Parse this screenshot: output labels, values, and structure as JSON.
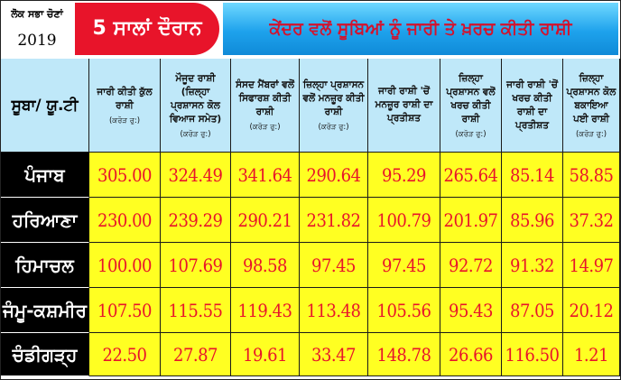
{
  "header": {
    "edition_line1": "ਲੋਕ ਸਭਾ ਚੋਣਾਂ",
    "edition_line2": "2019",
    "badge": "5 ਸਾਲਾਂ ਦੌਰਾਨ",
    "headline": "ਕੇਂਦਰ ਵਲੋਂ ਸੂਬਿਆਂ ਨੂੰ ਜਾਰੀ ਤੇ ਖ਼ਰਚ ਕੀਤੀ ਰਾਸ਼ੀ",
    "badge_color": "#e8142a",
    "headline_bg": "#1ea2ec",
    "headline_text_color": "#d4122c"
  },
  "table": {
    "corner": "ਸੂਬਾ/ ਯੂ.ਟੀ",
    "columns": [
      {
        "title": "ਜਾਰੀ ਕੀਤੀ ਕੁੱਲ ਰਾਸ਼ੀ",
        "unit": "(ਕਰੋੜ ਰੁ:)"
      },
      {
        "title": "ਮੌਜੂਦ ਰਾਸ਼ੀ (ਜ਼ਿਲ੍ਹਾ ਪ੍ਰਸ਼ਾਸਨ ਕੋਲ ਵਿਆਜ ਸਮੇਤ)",
        "unit": "(ਕਰੋੜ ਰੁ:)"
      },
      {
        "title": "ਸੰਸਦ ਮੈਂਬਰਾਂ ਵਲੋਂ ਸਿਫਾਰਸ਼ ਕੀਤੀ ਰਾਸ਼ੀ",
        "unit": "(ਕਰੋੜ ਰੁ:)"
      },
      {
        "title": "ਜ਼ਿਲ੍ਹਾ ਪ੍ਰਸ਼ਾਸਨ ਵਲੋਂ ਮਨਜ਼ੂਰ ਕੀਤੀ ਰਾਸ਼ੀ",
        "unit": "(ਕਰੋੜ ਰੁ:)"
      },
      {
        "title": "ਜਾਰੀ ਰਾਸ਼ੀ 'ਚੋਂ ਮਨਜ਼ੂਰ ਰਾਸ਼ੀ ਦਾ ਪ੍ਰਤੀਸ਼ਤ",
        "unit": ""
      },
      {
        "title": "ਜ਼ਿਲ੍ਹਾ ਪ੍ਰਸ਼ਾਸਨ ਵਲੋਂ ਖਰਚ ਕੀਤੀ ਰਾਸ਼ੀ",
        "unit": "(ਕਰੋੜ ਰੁ:)"
      },
      {
        "title": "ਜਾਰੀ ਰਾਸ਼ੀ 'ਚੋਂ ਖਰਚ ਕੀਤੀ ਰਾਸ਼ੀ ਦਾ ਪ੍ਰਤੀਸ਼ਤ",
        "unit": ""
      },
      {
        "title": "ਜ਼ਿਲ੍ਹਾ ਪ੍ਰਸ਼ਾਸਨ ਕੋਲ ਬਕਾਇਆ ਪਈ ਰਾਸ਼ੀ",
        "unit": "(ਕਰੋੜ ਰੁ:)"
      }
    ],
    "rows": [
      {
        "state": "ਪੰਜਾਬ",
        "values": [
          "305.00",
          "324.49",
          "341.64",
          "290.64",
          "95.29",
          "265.64",
          "85.14",
          "58.85"
        ]
      },
      {
        "state": "ਹਰਿਆਣਾ",
        "values": [
          "230.00",
          "239.29",
          "290.21",
          "231.82",
          "100.79",
          "201.97",
          "85.96",
          "37.32"
        ]
      },
      {
        "state": "ਹਿਮਾਚਲ",
        "values": [
          "100.00",
          "107.69",
          "98.58",
          "97.45",
          "97.45",
          "92.72",
          "91.32",
          "14.97"
        ]
      },
      {
        "state": "ਜੰਮੂ-ਕਸ਼ਮੀਰ",
        "values": [
          "107.50",
          "115.55",
          "119.43",
          "113.48",
          "105.56",
          "95.43",
          "87.05",
          "20.12"
        ]
      },
      {
        "state": "ਚੰਡੀਗੜ੍ਹ",
        "values": [
          "22.50",
          "27.87",
          "19.61",
          "33.47",
          "148.78",
          "26.66",
          "116.50",
          "1.21"
        ]
      }
    ],
    "value_bg": "#ffff22",
    "value_color": "#e8142a",
    "header_bg": "#bfe8f9"
  }
}
